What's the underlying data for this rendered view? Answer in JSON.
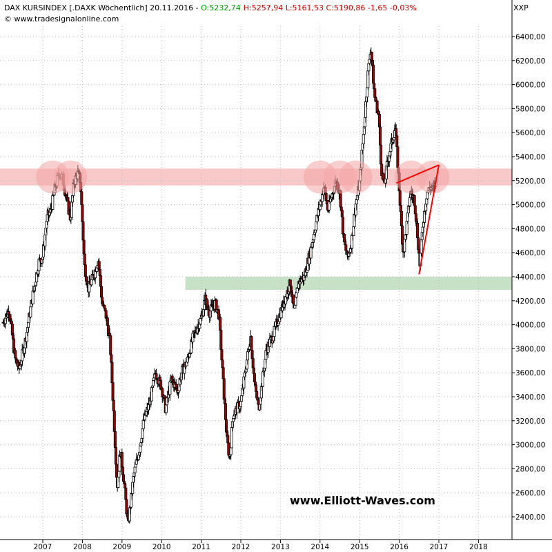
{
  "header": {
    "line1_prefix": "DAX KURSINDEX [.DAXK  Wöchentlich] 20.11.2016 - ",
    "open": "O:5232,74",
    "rest": "H:5257,94  L:5161,53  C:5190,86  -1,65  -0,03%",
    "source": "© www.tradesignalonline.com",
    "symbol": "XXP"
  },
  "watermark": "www.Elliott-Waves.com",
  "colors": {
    "up_candle": "#ffffff",
    "down_candle": "#a00000",
    "wick": "#000000",
    "resistance_band": "#f7b6b6",
    "support_band": "#b9d9b9",
    "circle": "#f4a6a6",
    "trendline": "#ff0000",
    "open_text": "#00a000",
    "close_text": "#d00000"
  },
  "chart_data": {
    "type": "candlestick",
    "title": "DAX KURSINDEX [.DAXK  Wöchentlich]",
    "ylim": [
      2250,
      6520
    ],
    "y_ticks": [
      "2400,00",
      "2600,00",
      "2800,00",
      "3000,00",
      "3200,00",
      "3400,00",
      "3600,00",
      "3800,00",
      "4000,00",
      "4200,00",
      "4400,00",
      "4600,00",
      "4800,00",
      "5000,00",
      "5200,00",
      "5400,00",
      "5600,00",
      "5800,00",
      "6000,00",
      "6200,00",
      "6400,00"
    ],
    "x_ticks": [
      "2007",
      "2008",
      "2009",
      "2010",
      "2011",
      "2012",
      "2013",
      "2014",
      "2015",
      "2016",
      "2017",
      "2018"
    ],
    "anchors": [
      [
        2006.0,
        4020
      ],
      [
        2006.15,
        4130
      ],
      [
        2006.3,
        3720
      ],
      [
        2006.4,
        3630
      ],
      [
        2006.55,
        3850
      ],
      [
        2006.75,
        4250
      ],
      [
        2006.9,
        4520
      ],
      [
        2007.0,
        4570
      ],
      [
        2007.1,
        4880
      ],
      [
        2007.2,
        4950
      ],
      [
        2007.32,
        5150
      ],
      [
        2007.42,
        5270
      ],
      [
        2007.5,
        5220
      ],
      [
        2007.6,
        5050
      ],
      [
        2007.7,
        4880
      ],
      [
        2007.78,
        5180
      ],
      [
        2007.88,
        5260
      ],
      [
        2007.95,
        5200
      ],
      [
        2008.0,
        4860
      ],
      [
        2008.05,
        4500
      ],
      [
        2008.15,
        4300
      ],
      [
        2008.3,
        4420
      ],
      [
        2008.4,
        4550
      ],
      [
        2008.5,
        4180
      ],
      [
        2008.6,
        4070
      ],
      [
        2008.7,
        3850
      ],
      [
        2008.8,
        3200
      ],
      [
        2008.88,
        2650
      ],
      [
        2008.96,
        2950
      ],
      [
        2009.05,
        2700
      ],
      [
        2009.15,
        2330
      ],
      [
        2009.3,
        2750
      ],
      [
        2009.45,
        2980
      ],
      [
        2009.55,
        3200
      ],
      [
        2009.7,
        3350
      ],
      [
        2009.85,
        3600
      ],
      [
        2010.0,
        3480
      ],
      [
        2010.1,
        3300
      ],
      [
        2010.25,
        3550
      ],
      [
        2010.4,
        3450
      ],
      [
        2010.5,
        3600
      ],
      [
        2010.65,
        3700
      ],
      [
        2010.8,
        3900
      ],
      [
        2010.95,
        4020
      ],
      [
        2011.0,
        4050
      ],
      [
        2011.1,
        4220
      ],
      [
        2011.2,
        4100
      ],
      [
        2011.35,
        4180
      ],
      [
        2011.45,
        4080
      ],
      [
        2011.55,
        3550
      ],
      [
        2011.65,
        3050
      ],
      [
        2011.72,
        2880
      ],
      [
        2011.8,
        3250
      ],
      [
        2011.9,
        3300
      ],
      [
        2012.0,
        3350
      ],
      [
        2012.15,
        3700
      ],
      [
        2012.25,
        3900
      ],
      [
        2012.35,
        3500
      ],
      [
        2012.45,
        3300
      ],
      [
        2012.55,
        3550
      ],
      [
        2012.65,
        3800
      ],
      [
        2012.8,
        3900
      ],
      [
        2012.95,
        4050
      ],
      [
        2013.1,
        4200
      ],
      [
        2013.25,
        4350
      ],
      [
        2013.35,
        4100
      ],
      [
        2013.45,
        4350
      ],
      [
        2013.6,
        4400
      ],
      [
        2013.75,
        4600
      ],
      [
        2013.9,
        4850
      ],
      [
        2014.0,
        5000
      ],
      [
        2014.1,
        5150
      ],
      [
        2014.2,
        4950
      ],
      [
        2014.3,
        5080
      ],
      [
        2014.4,
        5200
      ],
      [
        2014.5,
        5100
      ],
      [
        2014.6,
        4700
      ],
      [
        2014.7,
        4550
      ],
      [
        2014.8,
        4700
      ],
      [
        2014.9,
        5000
      ],
      [
        2015.0,
        5180
      ],
      [
        2015.1,
        5600
      ],
      [
        2015.2,
        6050
      ],
      [
        2015.28,
        6320
      ],
      [
        2015.38,
        5900
      ],
      [
        2015.48,
        5750
      ],
      [
        2015.55,
        5300
      ],
      [
        2015.62,
        5150
      ],
      [
        2015.7,
        5350
      ],
      [
        2015.8,
        5500
      ],
      [
        2015.9,
        5650
      ],
      [
        2015.97,
        5300
      ],
      [
        2016.05,
        4850
      ],
      [
        2016.1,
        4600
      ],
      [
        2016.18,
        4800
      ],
      [
        2016.28,
        5100
      ],
      [
        2016.38,
        5050
      ],
      [
        2016.45,
        4800
      ],
      [
        2016.52,
        4500
      ],
      [
        2016.6,
        4850
      ],
      [
        2016.7,
        5100
      ],
      [
        2016.8,
        5150
      ],
      [
        2016.88,
        5120
      ],
      [
        2016.92,
        5200
      ]
    ]
  }
}
